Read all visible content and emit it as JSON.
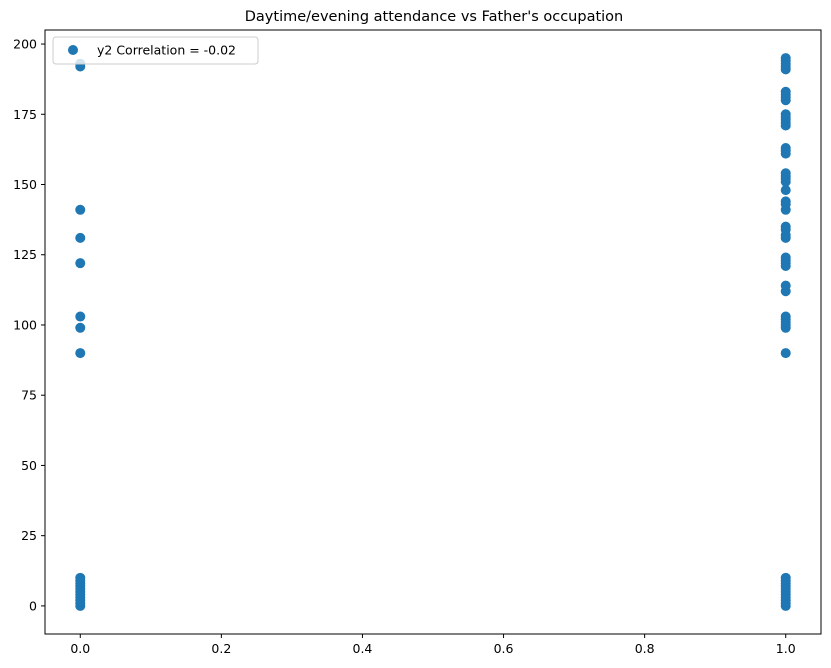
{
  "chart_data": {
    "type": "scatter",
    "title": "Daytime/evening attendance\t vs Father's occupation",
    "xlabel": "",
    "ylabel": "",
    "xlim": [
      -0.05,
      1.05
    ],
    "ylim": [
      -10,
      205
    ],
    "xticks": [
      0.0,
      0.2,
      0.4,
      0.6,
      0.8,
      1.0
    ],
    "xtick_labels": [
      "0.0",
      "0.2",
      "0.4",
      "0.6",
      "0.8",
      "1.0"
    ],
    "yticks": [
      0,
      25,
      50,
      75,
      100,
      125,
      150,
      175,
      200
    ],
    "ytick_labels": [
      "0",
      "25",
      "50",
      "75",
      "100",
      "125",
      "150",
      "175",
      "200"
    ],
    "grid": false,
    "legend_position": "upper left",
    "series": [
      {
        "name": "y2 Correlation = -0.02",
        "color": "#1f77b4",
        "points": [
          {
            "x": 0,
            "y": 0
          },
          {
            "x": 0,
            "y": 1
          },
          {
            "x": 0,
            "y": 2
          },
          {
            "x": 0,
            "y": 3
          },
          {
            "x": 0,
            "y": 4
          },
          {
            "x": 0,
            "y": 5
          },
          {
            "x": 0,
            "y": 6
          },
          {
            "x": 0,
            "y": 7
          },
          {
            "x": 0,
            "y": 8
          },
          {
            "x": 0,
            "y": 9
          },
          {
            "x": 0,
            "y": 10
          },
          {
            "x": 0,
            "y": 90
          },
          {
            "x": 0,
            "y": 99
          },
          {
            "x": 0,
            "y": 103
          },
          {
            "x": 0,
            "y": 122
          },
          {
            "x": 0,
            "y": 131
          },
          {
            "x": 0,
            "y": 141
          },
          {
            "x": 0,
            "y": 192
          },
          {
            "x": 0,
            "y": 193
          },
          {
            "x": 1,
            "y": 0
          },
          {
            "x": 1,
            "y": 1
          },
          {
            "x": 1,
            "y": 2
          },
          {
            "x": 1,
            "y": 3
          },
          {
            "x": 1,
            "y": 4
          },
          {
            "x": 1,
            "y": 5
          },
          {
            "x": 1,
            "y": 6
          },
          {
            "x": 1,
            "y": 7
          },
          {
            "x": 1,
            "y": 8
          },
          {
            "x": 1,
            "y": 9
          },
          {
            "x": 1,
            "y": 10
          },
          {
            "x": 1,
            "y": 90
          },
          {
            "x": 1,
            "y": 99
          },
          {
            "x": 1,
            "y": 100
          },
          {
            "x": 1,
            "y": 101
          },
          {
            "x": 1,
            "y": 102
          },
          {
            "x": 1,
            "y": 103
          },
          {
            "x": 1,
            "y": 112
          },
          {
            "x": 1,
            "y": 114
          },
          {
            "x": 1,
            "y": 121
          },
          {
            "x": 1,
            "y": 122
          },
          {
            "x": 1,
            "y": 123
          },
          {
            "x": 1,
            "y": 124
          },
          {
            "x": 1,
            "y": 131
          },
          {
            "x": 1,
            "y": 132
          },
          {
            "x": 1,
            "y": 134
          },
          {
            "x": 1,
            "y": 135
          },
          {
            "x": 1,
            "y": 141
          },
          {
            "x": 1,
            "y": 143
          },
          {
            "x": 1,
            "y": 144
          },
          {
            "x": 1,
            "y": 148
          },
          {
            "x": 1,
            "y": 151
          },
          {
            "x": 1,
            "y": 152
          },
          {
            "x": 1,
            "y": 153
          },
          {
            "x": 1,
            "y": 154
          },
          {
            "x": 1,
            "y": 161
          },
          {
            "x": 1,
            "y": 162
          },
          {
            "x": 1,
            "y": 163
          },
          {
            "x": 1,
            "y": 171
          },
          {
            "x": 1,
            "y": 172
          },
          {
            "x": 1,
            "y": 173
          },
          {
            "x": 1,
            "y": 174
          },
          {
            "x": 1,
            "y": 175
          },
          {
            "x": 1,
            "y": 180
          },
          {
            "x": 1,
            "y": 181
          },
          {
            "x": 1,
            "y": 182
          },
          {
            "x": 1,
            "y": 183
          },
          {
            "x": 1,
            "y": 191
          },
          {
            "x": 1,
            "y": 192
          },
          {
            "x": 1,
            "y": 193
          },
          {
            "x": 1,
            "y": 194
          },
          {
            "x": 1,
            "y": 195
          }
        ]
      }
    ]
  }
}
